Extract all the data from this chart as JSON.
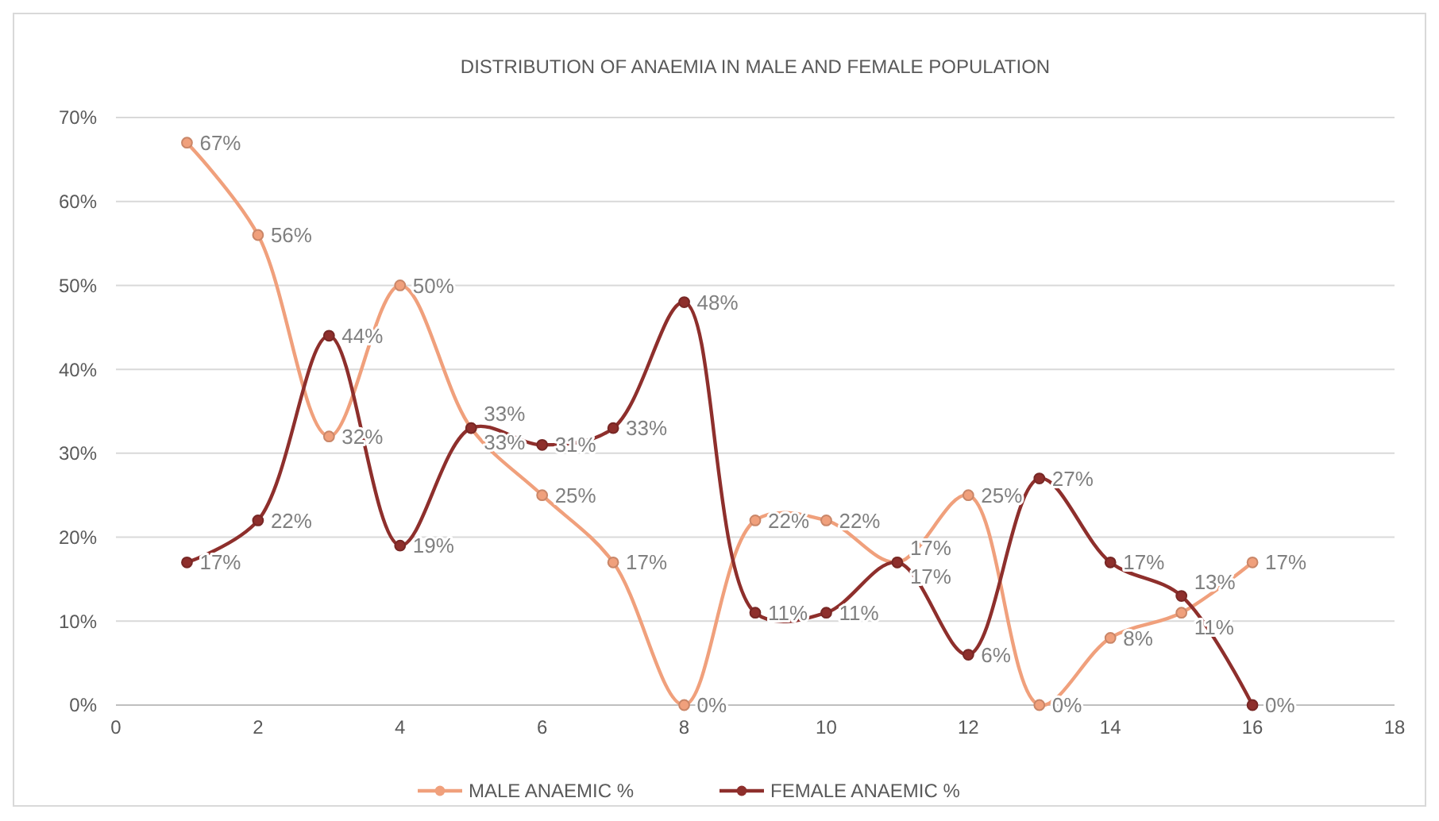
{
  "chart_data": {
    "type": "line",
    "title": "DISTRIBUTION  OF ANAEMIA IN MALE AND FEMALE POPULATION",
    "x": [
      1,
      2,
      3,
      4,
      5,
      6,
      7,
      8,
      9,
      10,
      11,
      12,
      13,
      14,
      15,
      16
    ],
    "series": [
      {
        "name": "MALE ANAEMIC %",
        "color": "#f0a07c",
        "values": [
          67,
          56,
          32,
          50,
          33,
          25,
          17,
          0,
          22,
          22,
          17,
          25,
          0,
          8,
          11,
          17
        ],
        "value_labels": [
          "67%",
          "56%",
          "32%",
          "50%",
          "33%",
          "25%",
          "17%",
          "0%",
          "22%",
          "22%",
          "17%",
          "25%",
          "0%",
          "8%",
          "11%",
          "17%"
        ]
      },
      {
        "name": "FEMALE ANAEMIC %",
        "color": "#8e2f2c",
        "values": [
          17,
          22,
          44,
          19,
          33,
          31,
          33,
          48,
          11,
          11,
          17,
          6,
          27,
          17,
          13,
          0
        ],
        "value_labels": [
          "17%",
          "22%",
          "44%",
          "19%",
          "33%",
          "31%",
          "33%",
          "48%",
          "11%",
          "11%",
          "17%",
          "6%",
          "27%",
          "17%",
          "13%",
          "0%"
        ]
      }
    ],
    "xlim": [
      0,
      18
    ],
    "xticks": [
      0,
      2,
      4,
      6,
      8,
      10,
      12,
      14,
      16,
      18
    ],
    "ylim": [
      0,
      70
    ],
    "yticks": [
      {
        "value": 0,
        "label": "0%"
      },
      {
        "value": 10,
        "label": "10%"
      },
      {
        "value": 20,
        "label": "20%"
      },
      {
        "value": 30,
        "label": "30%"
      },
      {
        "value": 40,
        "label": "40%"
      },
      {
        "value": 50,
        "label": "50%"
      },
      {
        "value": 60,
        "label": "60%"
      },
      {
        "value": 70,
        "label": "70%"
      }
    ],
    "grid": "y",
    "legend": "bottom",
    "marker": "circle",
    "line_style": "solid"
  }
}
